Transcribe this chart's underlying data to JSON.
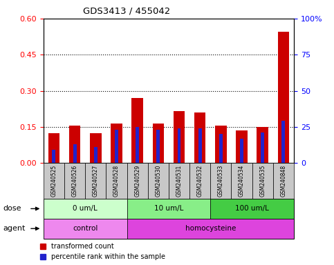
{
  "title": "GDS3413 / 455042",
  "samples": [
    "GSM240525",
    "GSM240526",
    "GSM240527",
    "GSM240528",
    "GSM240529",
    "GSM240530",
    "GSM240531",
    "GSM240532",
    "GSM240533",
    "GSM240534",
    "GSM240535",
    "GSM240848"
  ],
  "transformed_count": [
    0.125,
    0.155,
    0.125,
    0.165,
    0.27,
    0.165,
    0.215,
    0.21,
    0.155,
    0.135,
    0.15,
    0.545
  ],
  "percentile_rank_pct": [
    9,
    13,
    11,
    23,
    25,
    23,
    24,
    24,
    20,
    17,
    21,
    29
  ],
  "bar_color_red": "#cc0000",
  "bar_color_blue": "#2222cc",
  "left_ylim": [
    0,
    0.6
  ],
  "right_ylim": [
    0,
    100
  ],
  "left_yticks": [
    0,
    0.15,
    0.3,
    0.45,
    0.6
  ],
  "right_yticks": [
    0,
    25,
    50,
    75,
    100
  ],
  "dotted_lines": [
    0.15,
    0.3,
    0.45
  ],
  "dose_groups": [
    {
      "label": "0 um/L",
      "start": 0,
      "end": 4,
      "color": "#ccffcc"
    },
    {
      "label": "10 um/L",
      "start": 4,
      "end": 8,
      "color": "#88ee88"
    },
    {
      "label": "100 um/L",
      "start": 8,
      "end": 12,
      "color": "#44cc44"
    }
  ],
  "agent_groups": [
    {
      "label": "control",
      "start": 0,
      "end": 4,
      "color": "#ee88ee"
    },
    {
      "label": "homocysteine",
      "start": 4,
      "end": 12,
      "color": "#dd44dd"
    }
  ],
  "dose_label": "dose",
  "agent_label": "agent",
  "legend_red": "transformed count",
  "legend_blue": "percentile rank within the sample",
  "bg_color": "#ffffff",
  "sample_box_color": "#c8c8c8"
}
